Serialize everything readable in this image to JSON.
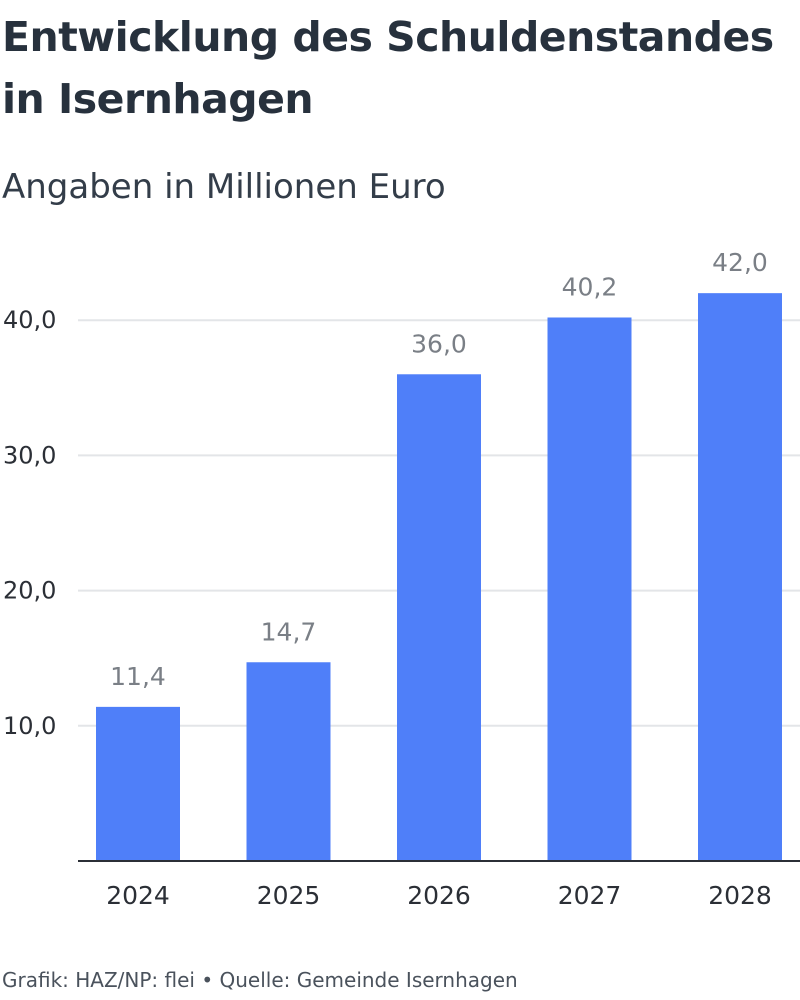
{
  "chart_data": {
    "type": "bar",
    "title": "Entwicklung des Schuldenstandes in Isernhagen",
    "subtitle": "Angaben in Millionen Euro",
    "categories": [
      "2024",
      "2025",
      "2026",
      "2027",
      "2028"
    ],
    "values": [
      11.4,
      14.7,
      36.0,
      40.2,
      42.0
    ],
    "value_labels": [
      "11,4",
      "14,7",
      "36,0",
      "40,2",
      "42,0"
    ],
    "y_ticks": [
      10,
      20,
      30,
      40
    ],
    "y_tick_labels": [
      "10,0",
      "20,0",
      "30,0",
      "40,0"
    ],
    "ylim": [
      0,
      42
    ],
    "grid": true,
    "bar_color": "#4f7ff9",
    "label_color": "#7a7f86",
    "gridline_color": "#e3e5e8"
  },
  "footer": {
    "text": "Grafik: HAZ/NP: flei • Quelle: Gemeinde Isernhagen"
  }
}
